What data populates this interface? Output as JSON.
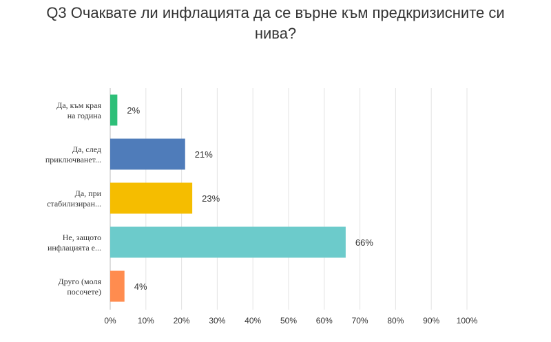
{
  "title_lines": [
    "Q3 Очаквате ли инфлацията да се върне към предкризисните си",
    "нива?"
  ],
  "chart_data": {
    "type": "bar",
    "orientation": "horizontal",
    "title": "Q3 Очаквате ли инфлацията да се върне към предкризисните си нива?",
    "categories": [
      [
        "Да, към края",
        "на година"
      ],
      [
        "Да, след",
        "приключванет..."
      ],
      [
        "Да, при",
        "стабилизиран..."
      ],
      [
        "Не, защото",
        "инфлацията е..."
      ],
      [
        "Друго (моля",
        "посочете)"
      ]
    ],
    "values": [
      2,
      21,
      23,
      66,
      4
    ],
    "value_labels": [
      "2%",
      "21%",
      "23%",
      "66%",
      "4%"
    ],
    "colors": [
      "#2dbf78",
      "#4f7cba",
      "#f5bd00",
      "#6ccbcb",
      "#ff8c4f"
    ],
    "xlim": [
      0,
      100
    ],
    "x_ticks": [
      0,
      10,
      20,
      30,
      40,
      50,
      60,
      70,
      80,
      90,
      100
    ],
    "x_tick_labels": [
      "0%",
      "10%",
      "20%",
      "30%",
      "40%",
      "50%",
      "60%",
      "70%",
      "80%",
      "90%",
      "100%"
    ],
    "grid": true,
    "legend": "none"
  }
}
